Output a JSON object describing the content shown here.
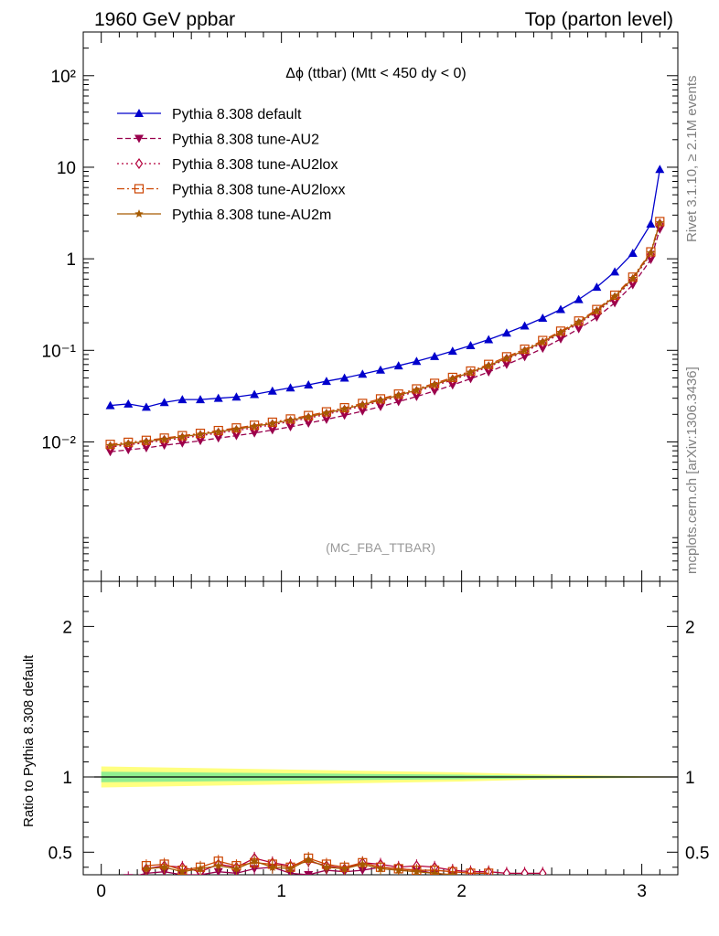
{
  "header": {
    "left": "1960 GeV ppbar",
    "right": "Top (parton level)"
  },
  "side": {
    "rivet": "Rivet 3.1.10, ≥ 2.1M events",
    "mcplots": "mcplots.cern.ch [arXiv:1306.3436]"
  },
  "chart_data": {
    "type": "line",
    "title": "Δϕ (ttbar) (Mtt < 450 dy < 0)",
    "watermark": "(MC_FBA_TTBAR)",
    "xlim": [
      -0.1,
      3.2
    ],
    "ylim_log": [
      0.0003,
      300
    ],
    "x_ticks": [
      "0",
      "1",
      "2",
      "3"
    ],
    "y_ticks": [
      "10²",
      "10",
      "1",
      "10⁻¹",
      "10⁻²"
    ],
    "ratio_ylabel": "Ratio to Pythia 8.308 default",
    "ratio_ylim": [
      0.35,
      2.3
    ],
    "ratio_ticks": [
      "0.5",
      "1",
      "2"
    ],
    "x": [
      0.05,
      0.15,
      0.25,
      0.35,
      0.45,
      0.55,
      0.65,
      0.75,
      0.85,
      0.95,
      1.05,
      1.15,
      1.25,
      1.35,
      1.45,
      1.55,
      1.65,
      1.75,
      1.85,
      1.95,
      2.05,
      2.15,
      2.25,
      2.35,
      2.45,
      2.55,
      2.65,
      2.75,
      2.85,
      2.95,
      3.05,
      3.1
    ],
    "series": [
      {
        "name": "Pythia 8.308 default",
        "color": "#0000cc",
        "marker": "triangle-up",
        "dash": "",
        "values": [
          0.025,
          0.026,
          0.024,
          0.027,
          0.029,
          0.029,
          0.03,
          0.031,
          0.033,
          0.036,
          0.039,
          0.042,
          0.046,
          0.05,
          0.055,
          0.061,
          0.068,
          0.076,
          0.086,
          0.098,
          0.113,
          0.131,
          0.155,
          0.185,
          0.225,
          0.28,
          0.36,
          0.49,
          0.72,
          1.15,
          2.4,
          9.5
        ]
      },
      {
        "name": "Pythia 8.308 tune-AU2",
        "color": "#99004d",
        "marker": "triangle-down",
        "dash": "6,3",
        "values": [
          0.0078,
          0.0082,
          0.0086,
          0.0092,
          0.0097,
          0.0103,
          0.011,
          0.0117,
          0.0125,
          0.0135,
          0.0146,
          0.016,
          0.0176,
          0.0195,
          0.0217,
          0.0243,
          0.0275,
          0.0313,
          0.036,
          0.0418,
          0.049,
          0.058,
          0.07,
          0.085,
          0.105,
          0.133,
          0.172,
          0.23,
          0.33,
          0.52,
          0.98,
          2.1
        ]
      },
      {
        "name": "Pythia 8.308 tune-AU2lox",
        "color": "#b3003c",
        "marker": "diamond",
        "dash": "2,3",
        "values": [
          0.0088,
          0.0093,
          0.0098,
          0.0104,
          0.011,
          0.0117,
          0.0125,
          0.0133,
          0.0143,
          0.0154,
          0.0167,
          0.0182,
          0.02,
          0.0222,
          0.0247,
          0.0277,
          0.0313,
          0.0356,
          0.041,
          0.0476,
          0.0558,
          0.066,
          0.08,
          0.097,
          0.12,
          0.152,
          0.196,
          0.262,
          0.375,
          0.59,
          1.12,
          2.4
        ]
      },
      {
        "name": "Pythia 8.308 tune-AU2loxx",
        "color": "#cc4400",
        "marker": "square",
        "dash": "8,3,2,3",
        "values": [
          0.0094,
          0.0099,
          0.0104,
          0.011,
          0.0117,
          0.0124,
          0.0133,
          0.0142,
          0.0152,
          0.0164,
          0.0178,
          0.0194,
          0.0213,
          0.0236,
          0.0263,
          0.0295,
          0.0333,
          0.0379,
          0.0436,
          0.0506,
          0.0594,
          0.0702,
          0.085,
          0.103,
          0.128,
          0.162,
          0.209,
          0.279,
          0.4,
          0.63,
          1.19,
          2.55
        ]
      },
      {
        "name": "Pythia 8.308 tune-AU2m",
        "color": "#a65a00",
        "marker": "star",
        "dash": "",
        "values": [
          0.0091,
          0.0096,
          0.0101,
          0.0107,
          0.0114,
          0.0121,
          0.0129,
          0.0138,
          0.0148,
          0.0159,
          0.0173,
          0.0188,
          0.0207,
          0.0229,
          0.0255,
          0.0286,
          0.0323,
          0.0368,
          0.0423,
          0.0491,
          0.0576,
          0.0681,
          0.082,
          0.1,
          0.124,
          0.157,
          0.203,
          0.271,
          0.388,
          0.61,
          1.16,
          2.47
        ]
      }
    ],
    "ratio_band": {
      "x": [
        0.0,
        0.5,
        1.0,
        1.5,
        2.0,
        2.5,
        3.0,
        3.2
      ],
      "yellow_halfwidth": [
        0.07,
        0.06,
        0.05,
        0.04,
        0.03,
        0.015,
        0.005,
        0.003
      ],
      "green_halfwidth": [
        0.035,
        0.03,
        0.025,
        0.02,
        0.015,
        0.008,
        0.003,
        0.002
      ]
    },
    "ratio_series": [
      {
        "name": "Pythia 8.308 tune-AU2",
        "color": "#99004d",
        "marker": "triangle-down",
        "x": [
          0.15,
          0.25,
          0.35,
          0.45,
          0.55,
          0.65,
          0.75,
          0.85,
          0.95,
          1.05,
          1.15,
          1.25,
          1.35,
          1.45,
          1.55,
          1.65,
          1.75,
          1.85,
          1.95
        ],
        "values": [
          0.33,
          0.36,
          0.37,
          0.35,
          0.35,
          0.37,
          0.36,
          0.39,
          0.4,
          0.36,
          0.35,
          0.38,
          0.37,
          0.38,
          0.4,
          0.39,
          0.38,
          0.36,
          0.35
        ]
      },
      {
        "name": "Pythia 8.308 tune-AU2lox",
        "color": "#b3003c",
        "marker": "diamond",
        "x": [
          0.25,
          0.35,
          0.45,
          0.55,
          0.65,
          0.75,
          0.85,
          0.95,
          1.05,
          1.15,
          1.25,
          1.35,
          1.45,
          1.55,
          1.65,
          1.75,
          1.85,
          1.95,
          2.05,
          2.15,
          2.25,
          2.35,
          2.45
        ],
        "values": [
          0.39,
          0.41,
          0.4,
          0.37,
          0.42,
          0.4,
          0.46,
          0.43,
          0.41,
          0.44,
          0.41,
          0.39,
          0.43,
          0.42,
          0.4,
          0.41,
          0.4,
          0.38,
          0.37,
          0.37,
          0.36,
          0.36,
          0.36
        ]
      },
      {
        "name": "Pythia 8.308 tune-AU2loxx",
        "color": "#cc4400",
        "marker": "square",
        "x": [
          0.25,
          0.35,
          0.45,
          0.55,
          0.65,
          0.75,
          0.85,
          0.95,
          1.05,
          1.15,
          1.25,
          1.35,
          1.45,
          1.55,
          1.65,
          1.75,
          1.85,
          1.95,
          2.05,
          2.15
        ],
        "values": [
          0.41,
          0.42,
          0.38,
          0.4,
          0.44,
          0.41,
          0.43,
          0.42,
          0.4,
          0.46,
          0.42,
          0.4,
          0.43,
          0.4,
          0.39,
          0.38,
          0.38,
          0.37,
          0.36,
          0.36
        ]
      },
      {
        "name": "Pythia 8.308 tune-AU2m",
        "color": "#a65a00",
        "marker": "star",
        "x": [
          0.25,
          0.35,
          0.45,
          0.55,
          0.65,
          0.75,
          0.85,
          0.95,
          1.05,
          1.15,
          1.25,
          1.35,
          1.45,
          1.55,
          1.65,
          1.75,
          1.85,
          1.95
        ],
        "values": [
          0.39,
          0.4,
          0.37,
          0.39,
          0.41,
          0.39,
          0.44,
          0.4,
          0.39,
          0.45,
          0.4,
          0.39,
          0.42,
          0.39,
          0.38,
          0.37,
          0.36,
          0.35
        ]
      }
    ]
  }
}
